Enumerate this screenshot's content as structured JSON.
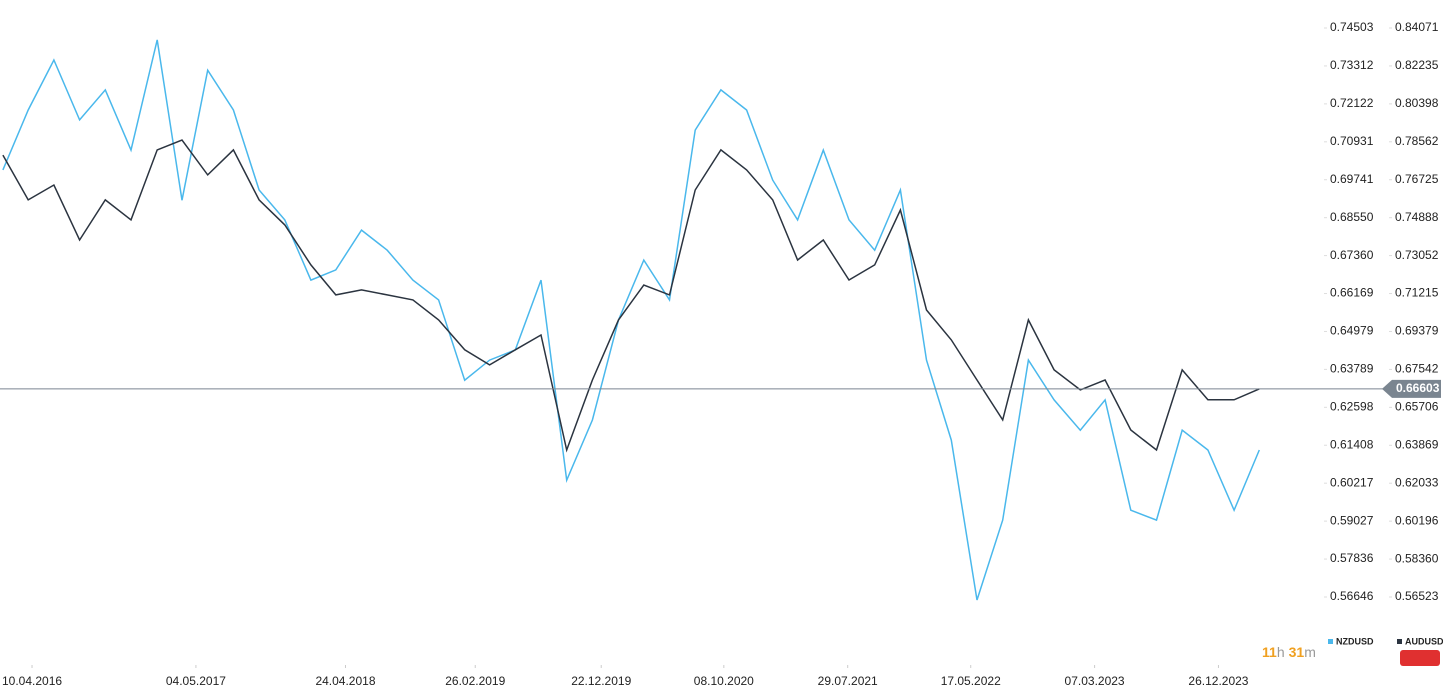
{
  "chart_data": {
    "type": "line",
    "x": [
      "2016-02-01",
      "2016-04-01",
      "2016-06-01",
      "2016-08-01",
      "2016-10-01",
      "2016-12-01",
      "2017-02-01",
      "2017-04-01",
      "2017-06-01",
      "2017-08-01",
      "2017-10-01",
      "2017-12-01",
      "2018-02-01",
      "2018-04-01",
      "2018-06-01",
      "2018-08-01",
      "2018-10-01",
      "2018-12-01",
      "2019-02-01",
      "2019-04-01",
      "2019-06-01",
      "2019-08-01",
      "2019-10-01",
      "2019-12-01",
      "2020-02-01",
      "2020-04-01",
      "2020-06-01",
      "2020-08-01",
      "2020-10-01",
      "2020-12-01",
      "2021-02-01",
      "2021-04-01",
      "2021-06-01",
      "2021-08-01",
      "2021-10-01",
      "2021-12-01",
      "2022-02-01",
      "2022-04-01",
      "2022-06-01",
      "2022-08-01",
      "2022-10-01",
      "2022-12-01",
      "2023-02-01",
      "2023-04-01",
      "2023-06-01",
      "2023-08-01",
      "2023-10-01",
      "2023-12-01",
      "2024-02-01",
      "2024-04-01"
    ],
    "series": [
      {
        "name": "NZDUSD",
        "color": "#4ab8ec",
        "axis": "y",
        "values": [
          0.7005,
          0.7193,
          0.735,
          0.7162,
          0.7256,
          0.7067,
          0.7413,
          0.691,
          0.7318,
          0.7193,
          0.6942,
          0.6848,
          0.6659,
          0.6691,
          0.6816,
          0.6753,
          0.6659,
          0.6597,
          0.6345,
          0.6408,
          0.644,
          0.6659,
          0.6031,
          0.622,
          0.6534,
          0.6722,
          0.6597,
          0.713,
          0.7256,
          0.7193,
          0.6973,
          0.6848,
          0.7067,
          0.6848,
          0.6753,
          0.6942,
          0.6408,
          0.6157,
          0.5655,
          0.5906,
          0.6408,
          0.6283,
          0.6188,
          0.6283,
          0.5937,
          0.5906,
          0.6188,
          0.6126,
          0.5937,
          0.6126
        ]
      },
      {
        "name": "AUDUSD",
        "color": "#2b3440",
        "axis": "y2",
        "values": [
          0.7792,
          0.7575,
          0.7647,
          0.7381,
          0.7575,
          0.7478,
          0.7817,
          0.7865,
          0.7696,
          0.7817,
          0.7575,
          0.7454,
          0.726,
          0.7115,
          0.7139,
          0.7115,
          0.7091,
          0.6994,
          0.6849,
          0.6776,
          0.6849,
          0.6921,
          0.6364,
          0.6703,
          0.6994,
          0.7163,
          0.7115,
          0.7623,
          0.7817,
          0.772,
          0.7575,
          0.7284,
          0.7381,
          0.7187,
          0.726,
          0.7526,
          0.7042,
          0.6897,
          0.6703,
          0.651,
          0.6994,
          0.6752,
          0.6655,
          0.6703,
          0.6461,
          0.6364,
          0.6752,
          0.6607,
          0.6607,
          0.666
        ]
      }
    ],
    "xlim": [
      "2016-01-25",
      "2024-08-23"
    ],
    "xticks": [
      {
        "value": "2016-04-10",
        "label": "10.04.2016"
      },
      {
        "value": "2017-05-04",
        "label": "04.05.2017"
      },
      {
        "value": "2018-04-24",
        "label": "24.04.2018"
      },
      {
        "value": "2019-02-26",
        "label": "26.02.2019"
      },
      {
        "value": "2019-12-22",
        "label": "22.12.2019"
      },
      {
        "value": "2020-10-08",
        "label": "08.10.2020"
      },
      {
        "value": "2021-07-29",
        "label": "29.07.2021"
      },
      {
        "value": "2022-05-17",
        "label": "17.05.2022"
      },
      {
        "value": "2023-03-07",
        "label": "07.03.2023"
      },
      {
        "value": "2023-12-26",
        "label": "26.12.2023"
      }
    ],
    "ylim": [
      0.54511,
      0.75382
    ],
    "yticks": [
      0.74503,
      0.73312,
      0.72122,
      0.70931,
      0.69741,
      {
        "value": 0.6855,
        "label": "0.68550"
      },
      {
        "value": 0.6736,
        "label": "0.67360"
      },
      0.66169,
      0.64979,
      0.63789,
      0.62598,
      0.61408,
      0.60217,
      0.59027,
      0.57836,
      0.56646
    ],
    "y2lim": [
      0.53232,
      0.85427
    ],
    "y2ticks": [
      0.84071,
      0.82235,
      0.80398,
      0.78562,
      0.76725,
      0.74888,
      0.73052,
      0.71215,
      0.69379,
      0.67542,
      0.65706,
      0.63869,
      0.62033,
      0.60196,
      {
        "value": 0.5836,
        "label": "0.58360"
      },
      0.56523
    ],
    "current_price": 0.66603,
    "current_price_color": "#7a8590"
  },
  "countdown": {
    "hours": "11",
    "hours_unit": "h",
    "minutes": "31",
    "minutes_unit": "m"
  }
}
